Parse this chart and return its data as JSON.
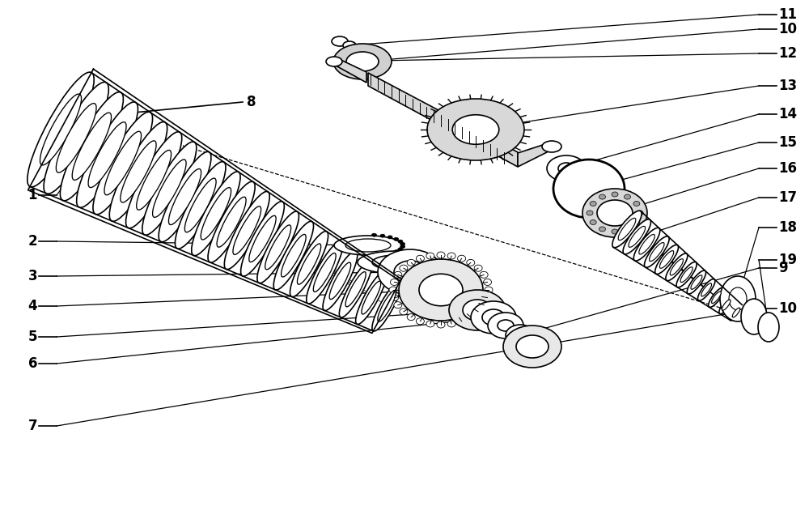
{
  "bg_color": "#ffffff",
  "line_color": "#000000",
  "figsize": [
    10.0,
    6.36
  ],
  "dpi": 100
}
